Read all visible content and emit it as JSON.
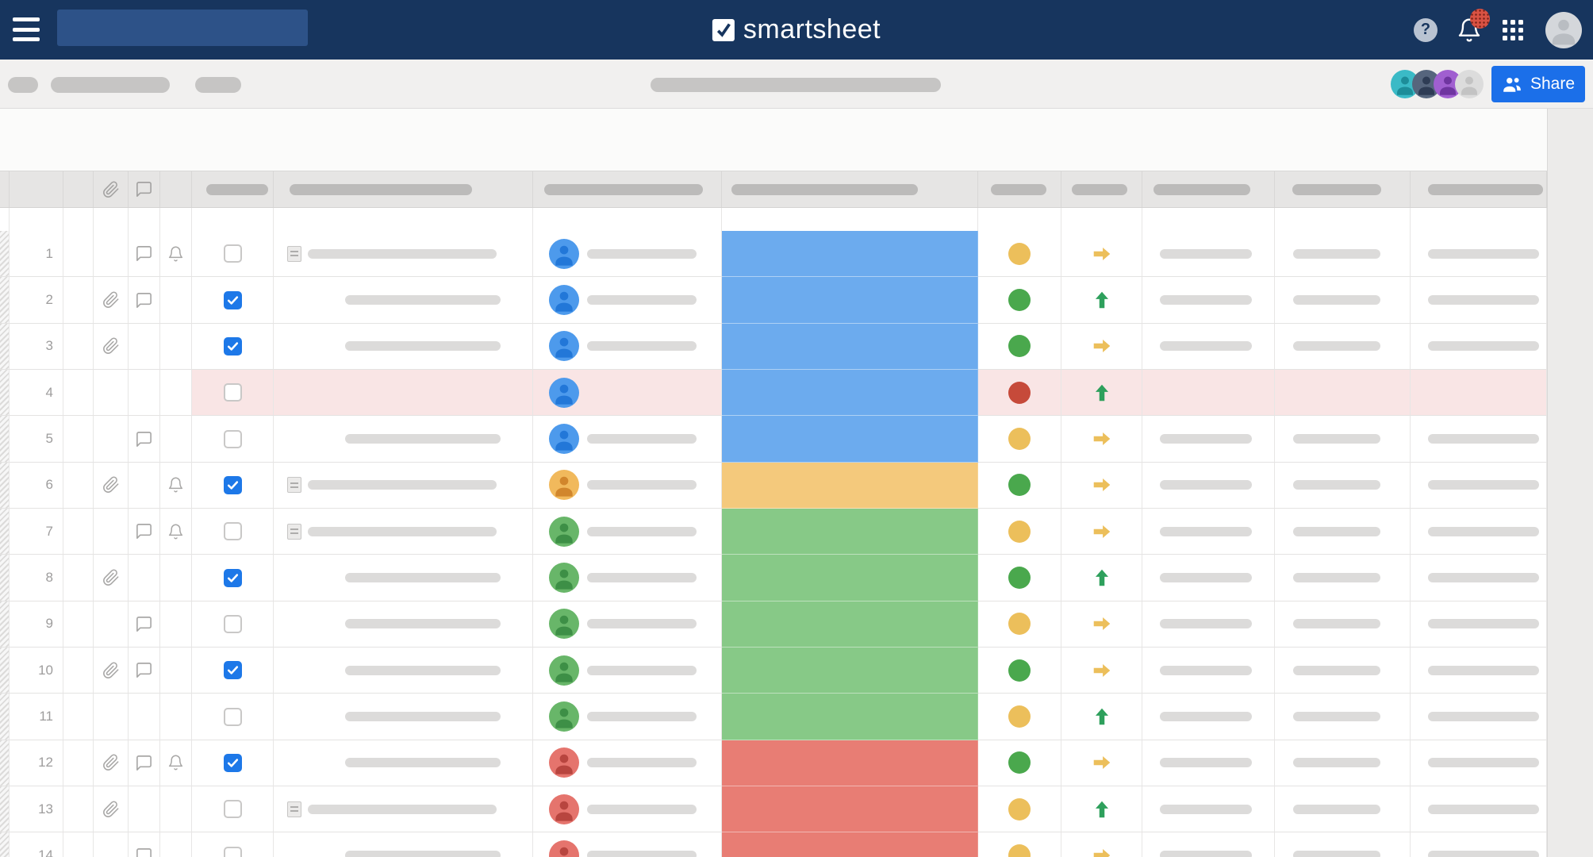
{
  "navbar": {
    "logo_text": "smartsheet",
    "help_label": "?",
    "search_value": ""
  },
  "toolbar": {
    "share_label": "Share",
    "collaborators": [
      {
        "bg": "#3bbac6",
        "fg": "#1d8d99"
      },
      {
        "bg": "#56657d",
        "fg": "#2e3c55"
      },
      {
        "bg": "#a05fd0",
        "fg": "#6f35a0"
      },
      {
        "bg": "#dcdcdc",
        "fg": "#c3c3c3"
      }
    ]
  },
  "colors": {
    "navbar_bg": "#17355e",
    "search_bg": "#2d5288",
    "share_btn": "#1b6fe9",
    "checkbox_checked": "#1d78e8",
    "row_highlight": "#f9e5e5",
    "block": {
      "blue": "#6cabee",
      "yellow": "#f4c97c",
      "green": "#87c987",
      "red": "#e87d74"
    },
    "dot": {
      "yellow": "#ecbf5b",
      "green": "#4aa84d",
      "red": "#c64a3a"
    },
    "arrow": {
      "yellow": "#ecbf5b",
      "green": "#2ea05c"
    },
    "avatar": {
      "blue": {
        "bg": "#4d9aec",
        "fg": "#2277d8"
      },
      "orange": {
        "bg": "#f1b95c",
        "fg": "#d1862c"
      },
      "green": {
        "bg": "#68b669",
        "fg": "#3d8f46"
      },
      "red": {
        "bg": "#e5746d",
        "fg": "#b8453f"
      }
    }
  },
  "grid": {
    "header": {
      "has_clip_icon": true,
      "has_comment_icon": true
    },
    "rows": [
      {
        "num": 1,
        "clip": false,
        "comment": true,
        "bell": true,
        "checked": false,
        "expand": true,
        "desc_pill": true,
        "avatar": "blue",
        "name_pill": true,
        "block": "blue",
        "dot": "yellow",
        "arrow": "right",
        "highlight": false,
        "right_pills": true
      },
      {
        "num": 2,
        "clip": true,
        "comment": true,
        "bell": false,
        "checked": true,
        "expand": false,
        "desc_pill": true,
        "avatar": "blue",
        "name_pill": true,
        "block": "blue",
        "dot": "green",
        "arrow": "up",
        "highlight": false,
        "right_pills": true
      },
      {
        "num": 3,
        "clip": true,
        "comment": false,
        "bell": false,
        "checked": true,
        "expand": false,
        "desc_pill": true,
        "avatar": "blue",
        "name_pill": true,
        "block": "blue",
        "dot": "green",
        "arrow": "right",
        "highlight": false,
        "right_pills": true
      },
      {
        "num": 4,
        "clip": false,
        "comment": false,
        "bell": false,
        "checked": false,
        "expand": false,
        "desc_pill": false,
        "avatar": "blue",
        "name_pill": false,
        "block": "blue",
        "dot": "red",
        "arrow": "up",
        "highlight": true,
        "right_pills": false
      },
      {
        "num": 5,
        "clip": false,
        "comment": true,
        "bell": false,
        "checked": false,
        "expand": false,
        "desc_pill": true,
        "avatar": "blue",
        "name_pill": true,
        "block": "blue",
        "dot": "yellow",
        "arrow": "right",
        "highlight": false,
        "right_pills": true
      },
      {
        "num": 6,
        "clip": true,
        "comment": false,
        "bell": true,
        "checked": true,
        "expand": true,
        "desc_pill": true,
        "avatar": "orange",
        "name_pill": true,
        "block": "yellow",
        "dot": "green",
        "arrow": "right",
        "highlight": false,
        "right_pills": true
      },
      {
        "num": 7,
        "clip": false,
        "comment": true,
        "bell": true,
        "checked": false,
        "expand": true,
        "desc_pill": true,
        "avatar": "green",
        "name_pill": true,
        "block": "green",
        "dot": "yellow",
        "arrow": "right",
        "highlight": false,
        "right_pills": true
      },
      {
        "num": 8,
        "clip": true,
        "comment": false,
        "bell": false,
        "checked": true,
        "expand": false,
        "desc_pill": true,
        "avatar": "green",
        "name_pill": true,
        "block": "green",
        "dot": "green",
        "arrow": "up",
        "highlight": false,
        "right_pills": true
      },
      {
        "num": 9,
        "clip": false,
        "comment": true,
        "bell": false,
        "checked": false,
        "expand": false,
        "desc_pill": true,
        "avatar": "green",
        "name_pill": true,
        "block": "green",
        "dot": "yellow",
        "arrow": "right",
        "highlight": false,
        "right_pills": true
      },
      {
        "num": 10,
        "clip": true,
        "comment": true,
        "bell": false,
        "checked": true,
        "expand": false,
        "desc_pill": true,
        "avatar": "green",
        "name_pill": true,
        "block": "green",
        "dot": "green",
        "arrow": "right",
        "highlight": false,
        "right_pills": true
      },
      {
        "num": 11,
        "clip": false,
        "comment": false,
        "bell": false,
        "checked": false,
        "expand": false,
        "desc_pill": true,
        "avatar": "green",
        "name_pill": true,
        "block": "green",
        "dot": "yellow",
        "arrow": "up",
        "highlight": false,
        "right_pills": true
      },
      {
        "num": 12,
        "clip": true,
        "comment": true,
        "bell": true,
        "checked": true,
        "expand": false,
        "desc_pill": true,
        "avatar": "red",
        "name_pill": true,
        "block": "red",
        "dot": "green",
        "arrow": "right",
        "highlight": false,
        "right_pills": true
      },
      {
        "num": 13,
        "clip": true,
        "comment": false,
        "bell": false,
        "checked": false,
        "expand": true,
        "desc_pill": true,
        "avatar": "red",
        "name_pill": true,
        "block": "red",
        "dot": "yellow",
        "arrow": "up",
        "highlight": false,
        "right_pills": true
      },
      {
        "num": 14,
        "clip": false,
        "comment": true,
        "bell": false,
        "checked": false,
        "expand": false,
        "desc_pill": true,
        "avatar": "red",
        "name_pill": true,
        "block": "red",
        "dot": "yellow",
        "arrow": "right",
        "highlight": false,
        "right_pills": true
      }
    ]
  }
}
